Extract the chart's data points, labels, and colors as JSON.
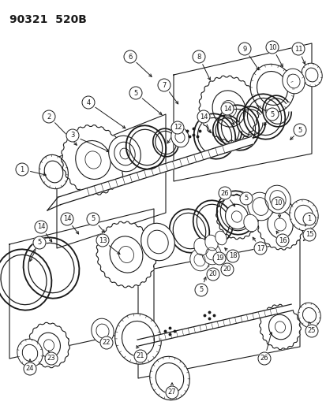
{
  "title": "90321  520B",
  "bg_color": "#ffffff",
  "line_color": "#1a1a1a",
  "title_fontsize": 10,
  "fig_width": 4.14,
  "fig_height": 5.33,
  "dpi": 100
}
